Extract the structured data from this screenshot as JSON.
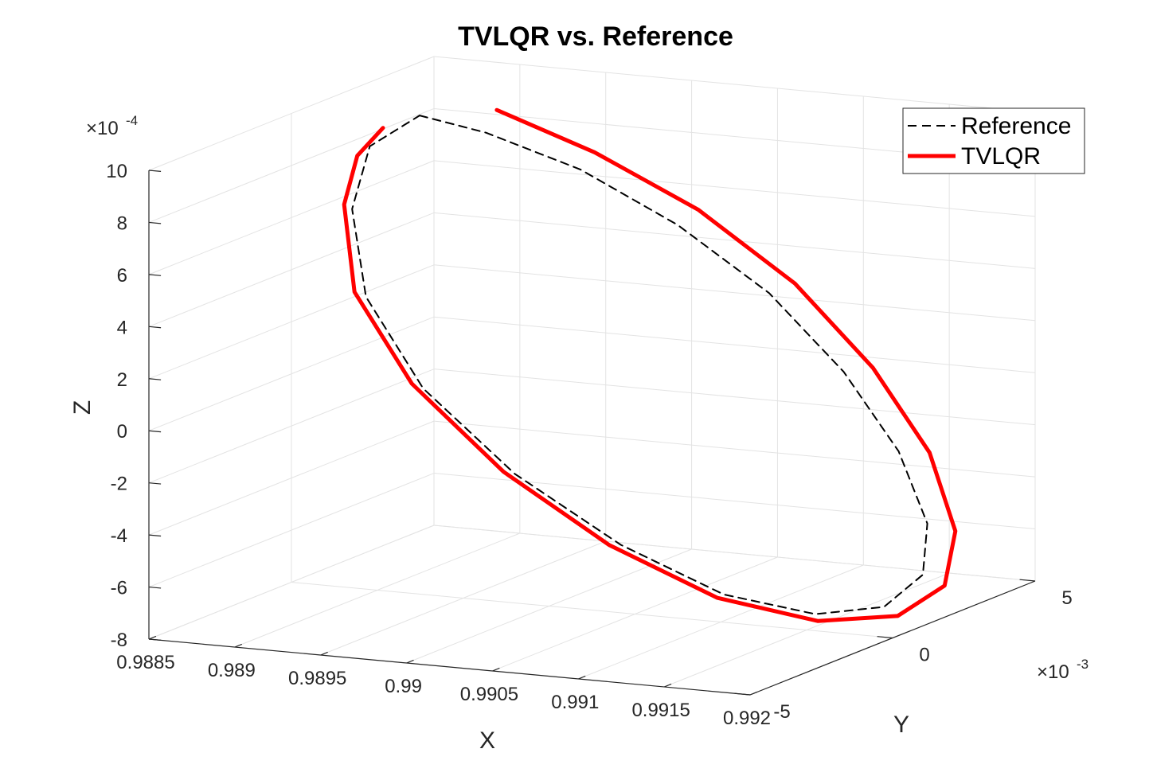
{
  "chart_data": {
    "type": "line",
    "title": "TVLQR vs. Reference",
    "xlabel": "X",
    "ylabel": "Y",
    "zlabel": "Z",
    "xlim": [
      0.9885,
      0.992
    ],
    "ylim": [
      -0.005,
      0.005
    ],
    "zlim": [
      -0.0008,
      0.001
    ],
    "x_ticks": [
      "0.9885",
      "0.989",
      "0.9895",
      "0.99",
      "0.9905",
      "0.991",
      "0.9915",
      "0.992"
    ],
    "y_ticks": [
      "-5",
      "0",
      "5"
    ],
    "z_ticks": [
      "-8",
      "-6",
      "-4",
      "-2",
      "0",
      "2",
      "4",
      "6",
      "8",
      "10"
    ],
    "y_multiplier": "×10",
    "y_multiplier_exp": "-3",
    "z_multiplier": "×10",
    "z_multiplier_exp": "-4",
    "grid": true,
    "legend_position": "top-right",
    "series": [
      {
        "name": "Reference",
        "style": "dashed",
        "color": "#000000",
        "points": [
          [
            0.98913,
            0.0007,
            0.001
          ],
          [
            0.9894,
            0.0014,
            0.00092
          ],
          [
            0.98985,
            0.002,
            0.00078
          ],
          [
            0.99035,
            0.0024,
            0.00058
          ],
          [
            0.99085,
            0.0026,
            0.00034
          ],
          [
            0.9913,
            0.0025,
            7e-05
          ],
          [
            0.99167,
            0.0022,
            -0.0002
          ],
          [
            0.99192,
            0.0017,
            -0.00044
          ],
          [
            0.99201,
            0.001,
            -0.0006
          ],
          [
            0.9919,
            0.0003,
            -0.0007
          ],
          [
            0.9916,
            -0.0003,
            -0.00072
          ],
          [
            0.99115,
            -0.0008,
            -0.00065
          ],
          [
            0.9906,
            -0.0011,
            -0.00048
          ],
          [
            0.99,
            -0.0012,
            -0.00024
          ],
          [
            0.98945,
            -0.0011,
            5e-05
          ],
          [
            0.98905,
            -0.0007,
            0.00036
          ],
          [
            0.98887,
            -0.0001,
            0.00066
          ],
          [
            0.98889,
            0.0004,
            0.00088
          ],
          [
            0.98913,
            0.0007,
            0.001
          ]
        ]
      },
      {
        "name": "TVLQR",
        "style": "solid",
        "color": "#ff0000",
        "points": [
          [
            0.98943,
            0.0016,
            0.001
          ],
          [
            0.9899,
            0.0022,
            0.00084
          ],
          [
            0.99042,
            0.0027,
            0.00063
          ],
          [
            0.99095,
            0.0029,
            0.00037
          ],
          [
            0.99142,
            0.0028,
            8e-05
          ],
          [
            0.9918,
            0.0025,
            -0.00021
          ],
          [
            0.99205,
            0.0019,
            -0.00047
          ],
          [
            0.99212,
            0.0011,
            -0.00064
          ],
          [
            0.99198,
            0.0003,
            -0.00073
          ],
          [
            0.99163,
            -0.0004,
            -0.00074
          ],
          [
            0.99113,
            -0.0009,
            -0.00066
          ],
          [
            0.99055,
            -0.0012,
            -0.00048
          ],
          [
            0.98995,
            -0.0013,
            -0.00023
          ],
          [
            0.9894,
            -0.0012,
            7e-05
          ],
          [
            0.989,
            -0.0008,
            0.00038
          ],
          [
            0.98884,
            -0.0002,
            0.00068
          ],
          [
            0.98885,
            0.0002,
            0.00085
          ],
          [
            0.98895,
            0.0005,
            0.00095
          ]
        ]
      }
    ]
  }
}
